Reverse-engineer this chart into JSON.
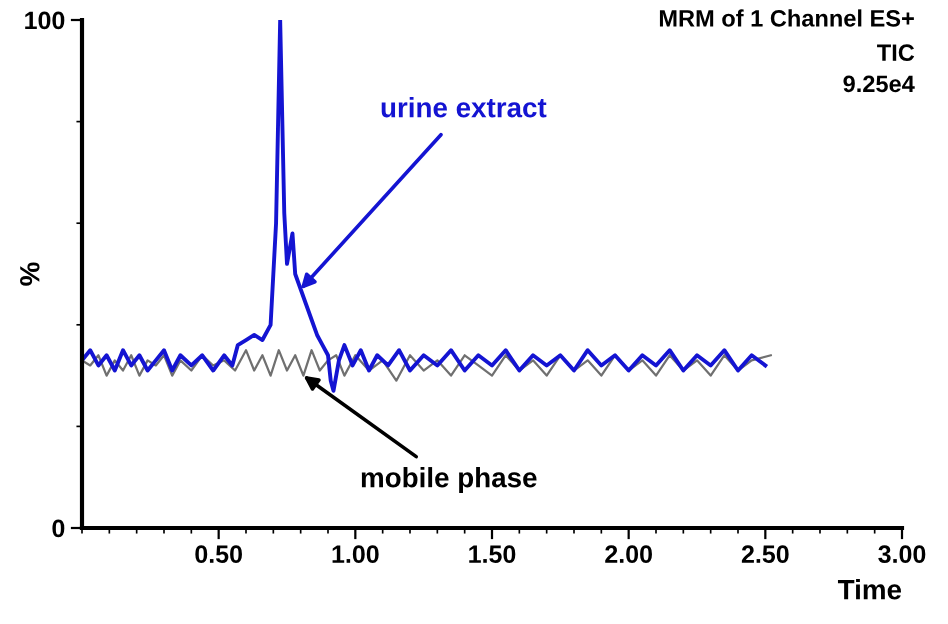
{
  "chart_data": {
    "type": "line",
    "ylabel": "%",
    "xlabel": "Time",
    "xlim": [
      0,
      3
    ],
    "xticks": [
      {
        "value": 0.5,
        "label": "0.50"
      },
      {
        "value": 1.0,
        "label": "1.00"
      },
      {
        "value": 1.5,
        "label": "1.50"
      },
      {
        "value": 2.0,
        "label": "2.00"
      },
      {
        "value": 2.5,
        "label": "2.50"
      },
      {
        "value": 3.0,
        "label": "3.00"
      }
    ],
    "ylim": [
      0,
      100
    ],
    "yticks": [
      0,
      100
    ],
    "grid": false,
    "legend": false,
    "marker": "none",
    "line_style": "solid",
    "series": [
      {
        "color": "#707070",
        "x": [
          0,
          0.03,
          0.06,
          0.09,
          0.12,
          0.15,
          0.18,
          0.21,
          0.24,
          0.27,
          0.3,
          0.33,
          0.36,
          0.4,
          0.44,
          0.48,
          0.52,
          0.56,
          0.6,
          0.63,
          0.66,
          0.69,
          0.72,
          0.75,
          0.78,
          0.81,
          0.84,
          0.87,
          0.9,
          0.93,
          0.96,
          1.0,
          1.05,
          1.1,
          1.15,
          1.2,
          1.25,
          1.3,
          1.35,
          1.4,
          1.45,
          1.5,
          1.55,
          1.6,
          1.65,
          1.7,
          1.75,
          1.8,
          1.85,
          1.9,
          1.95,
          2.0,
          2.05,
          2.1,
          2.15,
          2.2,
          2.25,
          2.3,
          2.35,
          2.4,
          2.45,
          2.52
        ],
        "values": [
          33,
          32,
          34,
          30,
          33,
          31,
          34,
          30,
          33,
          32,
          34,
          30,
          33,
          31,
          34,
          32,
          33,
          31,
          35,
          31,
          34,
          30,
          35,
          31,
          34,
          30,
          35,
          31,
          33,
          34,
          30,
          34,
          31,
          33,
          29,
          34,
          31,
          33,
          30,
          34,
          32,
          30,
          34,
          31,
          33,
          30,
          34,
          31,
          33,
          30,
          34,
          31,
          33,
          30,
          34,
          31,
          33,
          30,
          34,
          31,
          33,
          34
        ]
      },
      {
        "color": "#1414d2",
        "x": [
          0,
          0.03,
          0.06,
          0.09,
          0.12,
          0.15,
          0.18,
          0.21,
          0.24,
          0.27,
          0.3,
          0.33,
          0.36,
          0.4,
          0.44,
          0.48,
          0.52,
          0.55,
          0.57,
          0.6,
          0.63,
          0.66,
          0.69,
          0.71,
          0.725,
          0.74,
          0.75,
          0.76,
          0.77,
          0.78,
          0.8,
          0.82,
          0.84,
          0.86,
          0.88,
          0.9,
          0.91,
          0.92,
          0.94,
          0.96,
          0.99,
          1.02,
          1.05,
          1.08,
          1.12,
          1.16,
          1.2,
          1.25,
          1.3,
          1.35,
          1.4,
          1.45,
          1.5,
          1.55,
          1.6,
          1.65,
          1.7,
          1.75,
          1.8,
          1.85,
          1.9,
          1.95,
          2.0,
          2.05,
          2.1,
          2.15,
          2.2,
          2.25,
          2.3,
          2.35,
          2.4,
          2.45,
          2.5
        ],
        "values": [
          33,
          35,
          32,
          34,
          31,
          35,
          32,
          34,
          31,
          33,
          35,
          31,
          34,
          32,
          34,
          31,
          34,
          32,
          36,
          37,
          38,
          37,
          40,
          60,
          100,
          62,
          52,
          55,
          58,
          50,
          47,
          44,
          41,
          38,
          36,
          34,
          29,
          27,
          33,
          36,
          32,
          35,
          31,
          34,
          32,
          35,
          31,
          34,
          32,
          35,
          31,
          34,
          32,
          35,
          31,
          34,
          32,
          34,
          31,
          35,
          32,
          34,
          31,
          34,
          32,
          35,
          31,
          34,
          32,
          35,
          31,
          34,
          32
        ]
      }
    ],
    "annotations": [
      "MRM of 1 Channel ES+",
      "TIC",
      "9.25e4",
      {
        "text": "urine extract",
        "x": 0.8,
        "y": 47
      },
      {
        "text": "mobile phase",
        "x": 0.81,
        "y": 30
      }
    ]
  }
}
